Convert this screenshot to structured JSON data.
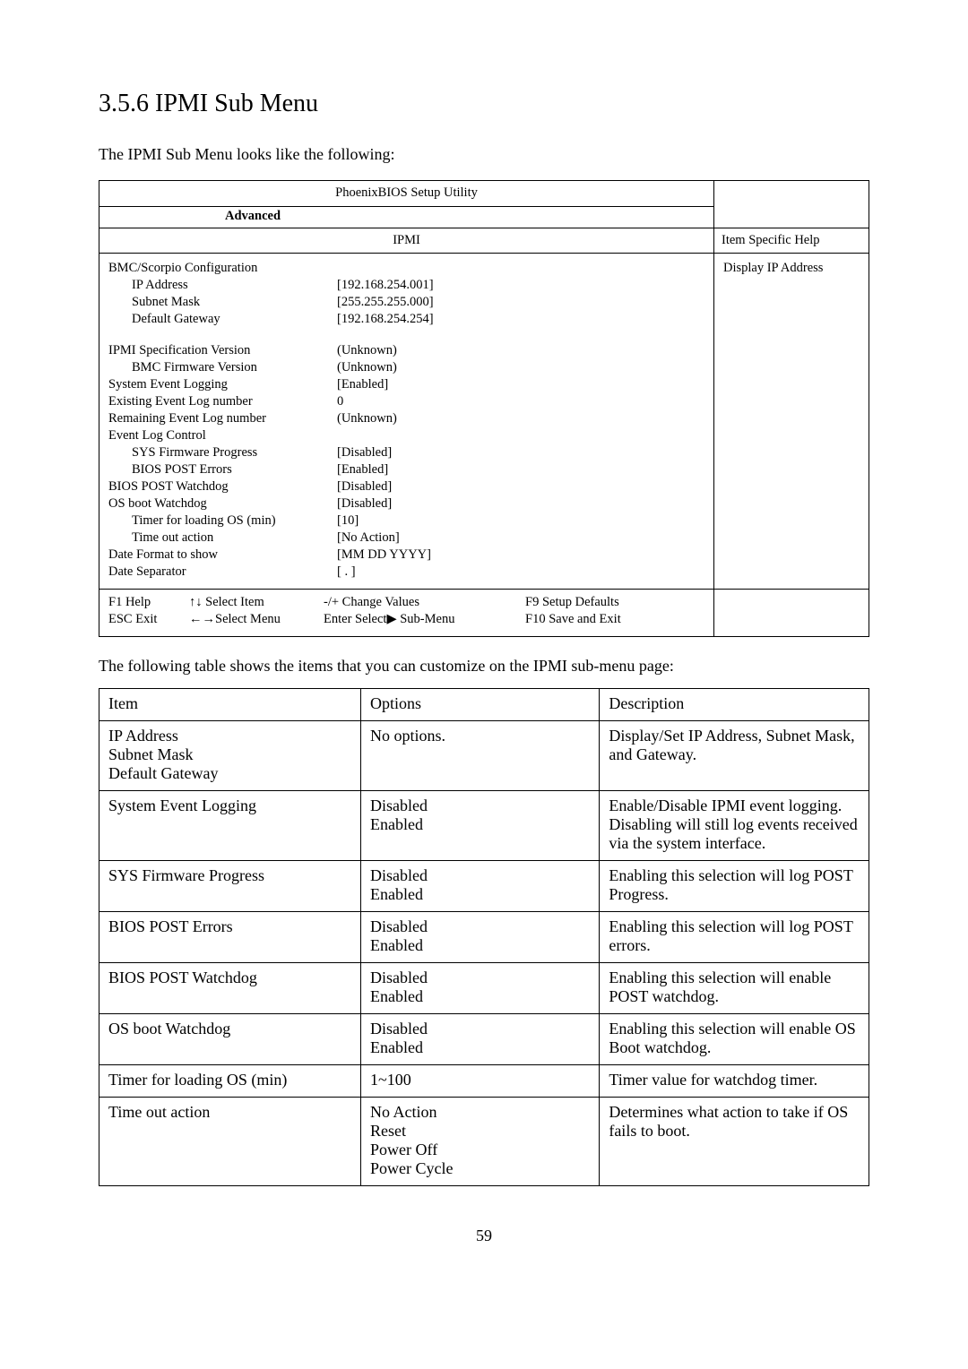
{
  "heading": "3.5.6  IPMI Sub Menu",
  "intro": "The IPMI Sub Menu looks like the following:",
  "bios": {
    "title": "PhoenixBIOS Setup Utility",
    "advanced_label": "Advanced",
    "ipmi_section_label": "IPMI",
    "help_header": "Item Specific Help",
    "help_body": "Display IP Address",
    "rows": [
      {
        "indent": 0,
        "label": "BMC/Scorpio Configuration",
        "value": ""
      },
      {
        "indent": 1,
        "label": "IP Address",
        "value": "[192.168.254.001]"
      },
      {
        "indent": 1,
        "label": "Subnet Mask",
        "value": "[255.255.255.000]"
      },
      {
        "indent": 1,
        "label": "Default Gateway",
        "value": "[192.168.254.254]"
      },
      {
        "indent": -1
      },
      {
        "indent": 0,
        "label": "IPMI Specification Version",
        "value": "(Unknown)"
      },
      {
        "indent": 1,
        "label": "BMC Firmware Version",
        "value": "(Unknown)"
      },
      {
        "indent": 0,
        "label": "System Event Logging",
        "value": "[Enabled]"
      },
      {
        "indent": 0,
        "label": "Existing Event Log number",
        "value": "0"
      },
      {
        "indent": 0,
        "label": "Remaining Event Log number",
        "value": "(Unknown)"
      },
      {
        "indent": 0,
        "label": "Event Log Control",
        "value": ""
      },
      {
        "indent": 1,
        "label": "SYS Firmware Progress",
        "value": "[Disabled]"
      },
      {
        "indent": 1,
        "label": "BIOS POST Errors",
        "value": "[Enabled]"
      },
      {
        "indent": 0,
        "label": "BIOS POST Watchdog",
        "value": "[Disabled]"
      },
      {
        "indent": 0,
        "label": "OS boot Watchdog",
        "value": "[Disabled]"
      },
      {
        "indent": 1,
        "label": "Timer for loading OS (min)",
        "value": "[10]"
      },
      {
        "indent": 1,
        "label": "Time out action",
        "value": "[No Action]"
      },
      {
        "indent": 0,
        "label": "Date Format to show",
        "value": "[MM DD YYYY]"
      },
      {
        "indent": 0,
        "label": "Date Separator",
        "value": "[ . ]"
      }
    ],
    "footer": {
      "f1": "F1  Help",
      "select_item": "↑↓ Select Item",
      "change": "-/+ Change Values",
      "f9": "F9   Setup Defaults",
      "esc": "ESC Exit",
      "select_menu": "←→Select Menu",
      "enter": "Enter Select▶ Sub-Menu",
      "f10": "F10  Save and Exit"
    }
  },
  "opts_intro": "The following table shows the items that you can customize on the IPMI sub-menu page:",
  "opts": {
    "headers": [
      "Item",
      "Options",
      "Description"
    ],
    "rows": [
      {
        "item": "IP Address\nSubnet Mask\nDefault Gateway",
        "options": "No options.",
        "desc": "Display/Set IP Address, Subnet Mask, and Gateway."
      },
      {
        "item": "System Event Logging",
        "options": "Disabled\nEnabled",
        "desc": "Enable/Disable IPMI event logging.  Disabling will still log events received via the system interface."
      },
      {
        "item": "SYS Firmware Progress",
        "options": "Disabled\nEnabled",
        "desc": "Enabling this selection will log POST Progress."
      },
      {
        "item": "BIOS POST Errors",
        "options": "Disabled\nEnabled",
        "desc": "Enabling this selection will log POST errors."
      },
      {
        "item": "BIOS POST Watchdog",
        "options": "Disabled\nEnabled",
        "desc": "Enabling this selection will enable POST watchdog."
      },
      {
        "item": "OS boot Watchdog",
        "options": "Disabled\nEnabled",
        "desc": "Enabling this selection will enable OS Boot watchdog."
      },
      {
        "item": "Timer for loading OS (min)",
        "options": "1~100",
        "desc": "Timer value for watchdog timer."
      },
      {
        "item": "Time out action",
        "options": "No Action\nReset\nPower Off\nPower Cycle",
        "desc": "Determines what action to take if OS fails to boot."
      }
    ]
  },
  "page_number": "59"
}
